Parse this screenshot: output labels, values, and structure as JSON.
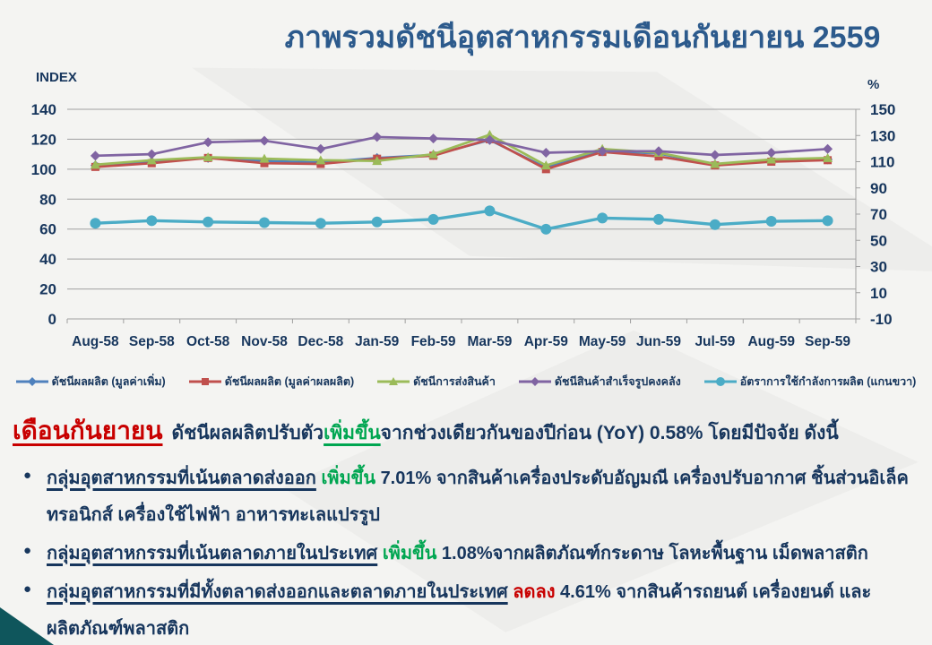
{
  "title": "ภาพรวมดัชนีอุตสาหกรรมเดือนกันยายน  2559",
  "chart_data": {
    "type": "line",
    "left_axis": {
      "label": "INDEX",
      "min": 0,
      "max": 140,
      "ticks": [
        140,
        120,
        100,
        80,
        60,
        40,
        20,
        0
      ]
    },
    "right_axis": {
      "label": "%",
      "min": -10,
      "max": 150,
      "ticks": [
        150,
        130,
        110,
        90,
        70,
        50,
        30,
        10,
        -10
      ]
    },
    "grid": "horizontal",
    "legend_position": "bottom",
    "categories": [
      "Aug-58",
      "Sep-58",
      "Oct-58",
      "Nov-58",
      "Dec-58",
      "Jan-59",
      "Feb-59",
      "Mar-59",
      "Apr-59",
      "May-59",
      "Jun-59",
      "Jul-59",
      "Aug-59",
      "Sep-59"
    ],
    "series": [
      {
        "name": "ดัชนีผลผลิต  (มูลค่าเพิ่ม)",
        "color": "#4f81bd",
        "marker": "diamond",
        "axis": "left",
        "values": [
          102.5,
          105,
          107.5,
          105.5,
          104.5,
          107.5,
          109.5,
          119.5,
          101,
          112,
          110.5,
          103,
          105.5,
          106.5
        ]
      },
      {
        "name": "ดัชนีผลผลิต  (มูลค่าผลผลิต)",
        "color": "#c0504d",
        "marker": "square",
        "axis": "left",
        "values": [
          101.5,
          104,
          107.5,
          104,
          103.5,
          107,
          109,
          120,
          100,
          111.5,
          108.5,
          102.5,
          105,
          106
        ]
      },
      {
        "name": "ดัชนีการส่งสินค้า",
        "color": "#9bbb59",
        "marker": "triangle",
        "axis": "left",
        "values": [
          103,
          106,
          108,
          107,
          106,
          105.5,
          110,
          123,
          102.5,
          113.5,
          111,
          103.5,
          106.5,
          107.5
        ]
      },
      {
        "name": "ดัชนีสินค้าสำเร็จรูปคงคลัง",
        "color": "#8064a2",
        "marker": "diamond",
        "axis": "left",
        "values": [
          109,
          110,
          118,
          119,
          113.5,
          121.5,
          120.5,
          119.5,
          111,
          112,
          112,
          109.5,
          111,
          113.5
        ]
      },
      {
        "name": "อัตราการใช้กำลังการผลิต  (แกนขวา)",
        "color": "#4bacc6",
        "marker": "circle",
        "axis": "right",
        "values": [
          63,
          65,
          64,
          63.5,
          63,
          64,
          66,
          72.5,
          58.5,
          67,
          66,
          62,
          64.5,
          65
        ]
      }
    ]
  },
  "summary": {
    "heading": "เดือนกันยายน",
    "intro_pre": "ดัชนีผลผลิตปรับตัว",
    "intro_highlight": "เพิ่มขึ้น",
    "intro_highlight_color": "#00a651",
    "intro_post": "จากช่วงเดียวกันของปีก่อน  (YoY) 0.58% โดยมีปัจจัย  ดังนี้",
    "bullets": [
      {
        "underlined": "กลุ่มอุตสาหกรรมที่เน้นตลาดส่งออก",
        "direction": "เพิ่มขึ้น",
        "direction_color": "#00a651",
        "rest": "7.01% จากสินค้าเครื่องประดับอัญมณี เครื่องปรับอากาศ ชิ้นส่วนอิเล็คทรอนิกส์ เครื่องใช้ไฟฟ้า อาหารทะเลแปรรูป"
      },
      {
        "underlined": "กลุ่มอุตสาหกรรมที่เน้นตลาดภายในประเทศ",
        "direction": "เพิ่มขึ้น",
        "direction_color": "#00a651",
        "rest": "1.08%จากผลิตภัณฑ์กระดาษ  โลหะพื้นฐาน  เม็ดพลาสติก"
      },
      {
        "underlined": "กลุ่มอุตสาหกรรมที่มีทั้งตลาดส่งออกและตลาดภายในประเทศ",
        "direction": "ลดลง",
        "direction_color": "#c80000",
        "rest": "4.61%  จากสินค้ารถยนต์  เครื่องยนต์  และผลิตภัณฑ์พลาสติก"
      }
    ]
  },
  "colors": {
    "title": "#2c5a8c",
    "axis_text": "#17365d",
    "body_text": "#17365d",
    "gridline": "#a0a0a0",
    "corner_accent": "#0f565c"
  }
}
